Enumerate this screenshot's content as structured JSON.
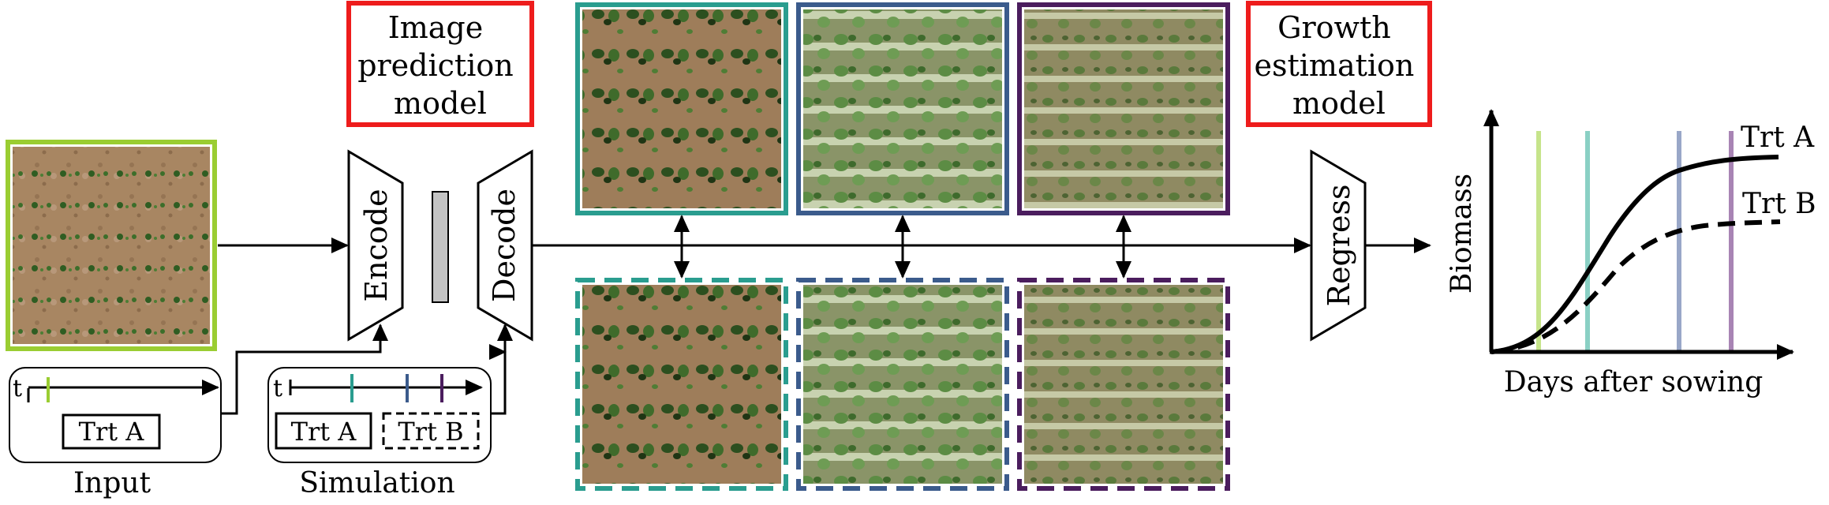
{
  "models": {
    "image_prediction": [
      "Image",
      "prediction",
      "model"
    ],
    "growth_estimation": [
      "Growth",
      "estimation",
      "model"
    ]
  },
  "blocks": {
    "encode": "Encode",
    "decode": "Decode",
    "regress": "Regress"
  },
  "input_panel": {
    "t_label": "t",
    "treatment": "Trt A",
    "caption": "Input"
  },
  "simulation_panel": {
    "t_label": "t",
    "treatment_a": "Trt A",
    "treatment_b": "Trt B",
    "caption": "Simulation"
  },
  "chart_data": {
    "type": "line",
    "xlabel": "Days after sowing",
    "ylabel": "Biomass",
    "series": [
      {
        "name": "Trt A",
        "style": "solid"
      },
      {
        "name": "Trt B",
        "style": "dashed"
      }
    ]
  },
  "colors": {
    "input": "#9ACD32",
    "time1": "#2a9d8f",
    "time2": "#3b5b8c",
    "time3": "#4b1d5e",
    "model_box": "#ee1c1c",
    "line_input": "#c6e48b",
    "line_t1": "#8ad0c4",
    "line_t2": "#99a7c8",
    "line_t3": "#a884b4"
  }
}
